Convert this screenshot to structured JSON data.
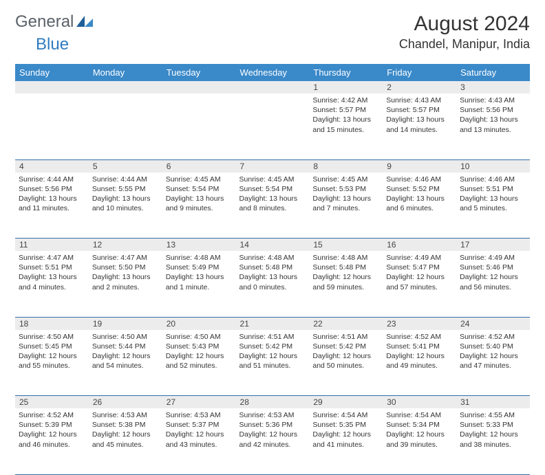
{
  "logo": {
    "part1": "General",
    "part2": "Blue"
  },
  "title": "August 2024",
  "location": "Chandel, Manipur, India",
  "header_bg": "#3a89c9",
  "day_headers": [
    "Sunday",
    "Monday",
    "Tuesday",
    "Wednesday",
    "Thursday",
    "Friday",
    "Saturday"
  ],
  "weeks": [
    {
      "nums": [
        "",
        "",
        "",
        "",
        "1",
        "2",
        "3"
      ],
      "cells": [
        null,
        null,
        null,
        null,
        {
          "sunrise": "Sunrise: 4:42 AM",
          "sunset": "Sunset: 5:57 PM",
          "daylight": "Daylight: 13 hours and 15 minutes."
        },
        {
          "sunrise": "Sunrise: 4:43 AM",
          "sunset": "Sunset: 5:57 PM",
          "daylight": "Daylight: 13 hours and 14 minutes."
        },
        {
          "sunrise": "Sunrise: 4:43 AM",
          "sunset": "Sunset: 5:56 PM",
          "daylight": "Daylight: 13 hours and 13 minutes."
        }
      ]
    },
    {
      "nums": [
        "4",
        "5",
        "6",
        "7",
        "8",
        "9",
        "10"
      ],
      "cells": [
        {
          "sunrise": "Sunrise: 4:44 AM",
          "sunset": "Sunset: 5:56 PM",
          "daylight": "Daylight: 13 hours and 11 minutes."
        },
        {
          "sunrise": "Sunrise: 4:44 AM",
          "sunset": "Sunset: 5:55 PM",
          "daylight": "Daylight: 13 hours and 10 minutes."
        },
        {
          "sunrise": "Sunrise: 4:45 AM",
          "sunset": "Sunset: 5:54 PM",
          "daylight": "Daylight: 13 hours and 9 minutes."
        },
        {
          "sunrise": "Sunrise: 4:45 AM",
          "sunset": "Sunset: 5:54 PM",
          "daylight": "Daylight: 13 hours and 8 minutes."
        },
        {
          "sunrise": "Sunrise: 4:45 AM",
          "sunset": "Sunset: 5:53 PM",
          "daylight": "Daylight: 13 hours and 7 minutes."
        },
        {
          "sunrise": "Sunrise: 4:46 AM",
          "sunset": "Sunset: 5:52 PM",
          "daylight": "Daylight: 13 hours and 6 minutes."
        },
        {
          "sunrise": "Sunrise: 4:46 AM",
          "sunset": "Sunset: 5:51 PM",
          "daylight": "Daylight: 13 hours and 5 minutes."
        }
      ]
    },
    {
      "nums": [
        "11",
        "12",
        "13",
        "14",
        "15",
        "16",
        "17"
      ],
      "cells": [
        {
          "sunrise": "Sunrise: 4:47 AM",
          "sunset": "Sunset: 5:51 PM",
          "daylight": "Daylight: 13 hours and 4 minutes."
        },
        {
          "sunrise": "Sunrise: 4:47 AM",
          "sunset": "Sunset: 5:50 PM",
          "daylight": "Daylight: 13 hours and 2 minutes."
        },
        {
          "sunrise": "Sunrise: 4:48 AM",
          "sunset": "Sunset: 5:49 PM",
          "daylight": "Daylight: 13 hours and 1 minute."
        },
        {
          "sunrise": "Sunrise: 4:48 AM",
          "sunset": "Sunset: 5:48 PM",
          "daylight": "Daylight: 13 hours and 0 minutes."
        },
        {
          "sunrise": "Sunrise: 4:48 AM",
          "sunset": "Sunset: 5:48 PM",
          "daylight": "Daylight: 12 hours and 59 minutes."
        },
        {
          "sunrise": "Sunrise: 4:49 AM",
          "sunset": "Sunset: 5:47 PM",
          "daylight": "Daylight: 12 hours and 57 minutes."
        },
        {
          "sunrise": "Sunrise: 4:49 AM",
          "sunset": "Sunset: 5:46 PM",
          "daylight": "Daylight: 12 hours and 56 minutes."
        }
      ]
    },
    {
      "nums": [
        "18",
        "19",
        "20",
        "21",
        "22",
        "23",
        "24"
      ],
      "cells": [
        {
          "sunrise": "Sunrise: 4:50 AM",
          "sunset": "Sunset: 5:45 PM",
          "daylight": "Daylight: 12 hours and 55 minutes."
        },
        {
          "sunrise": "Sunrise: 4:50 AM",
          "sunset": "Sunset: 5:44 PM",
          "daylight": "Daylight: 12 hours and 54 minutes."
        },
        {
          "sunrise": "Sunrise: 4:50 AM",
          "sunset": "Sunset: 5:43 PM",
          "daylight": "Daylight: 12 hours and 52 minutes."
        },
        {
          "sunrise": "Sunrise: 4:51 AM",
          "sunset": "Sunset: 5:42 PM",
          "daylight": "Daylight: 12 hours and 51 minutes."
        },
        {
          "sunrise": "Sunrise: 4:51 AM",
          "sunset": "Sunset: 5:42 PM",
          "daylight": "Daylight: 12 hours and 50 minutes."
        },
        {
          "sunrise": "Sunrise: 4:52 AM",
          "sunset": "Sunset: 5:41 PM",
          "daylight": "Daylight: 12 hours and 49 minutes."
        },
        {
          "sunrise": "Sunrise: 4:52 AM",
          "sunset": "Sunset: 5:40 PM",
          "daylight": "Daylight: 12 hours and 47 minutes."
        }
      ]
    },
    {
      "nums": [
        "25",
        "26",
        "27",
        "28",
        "29",
        "30",
        "31"
      ],
      "cells": [
        {
          "sunrise": "Sunrise: 4:52 AM",
          "sunset": "Sunset: 5:39 PM",
          "daylight": "Daylight: 12 hours and 46 minutes."
        },
        {
          "sunrise": "Sunrise: 4:53 AM",
          "sunset": "Sunset: 5:38 PM",
          "daylight": "Daylight: 12 hours and 45 minutes."
        },
        {
          "sunrise": "Sunrise: 4:53 AM",
          "sunset": "Sunset: 5:37 PM",
          "daylight": "Daylight: 12 hours and 43 minutes."
        },
        {
          "sunrise": "Sunrise: 4:53 AM",
          "sunset": "Sunset: 5:36 PM",
          "daylight": "Daylight: 12 hours and 42 minutes."
        },
        {
          "sunrise": "Sunrise: 4:54 AM",
          "sunset": "Sunset: 5:35 PM",
          "daylight": "Daylight: 12 hours and 41 minutes."
        },
        {
          "sunrise": "Sunrise: 4:54 AM",
          "sunset": "Sunset: 5:34 PM",
          "daylight": "Daylight: 12 hours and 39 minutes."
        },
        {
          "sunrise": "Sunrise: 4:55 AM",
          "sunset": "Sunset: 5:33 PM",
          "daylight": "Daylight: 12 hours and 38 minutes."
        }
      ]
    }
  ]
}
